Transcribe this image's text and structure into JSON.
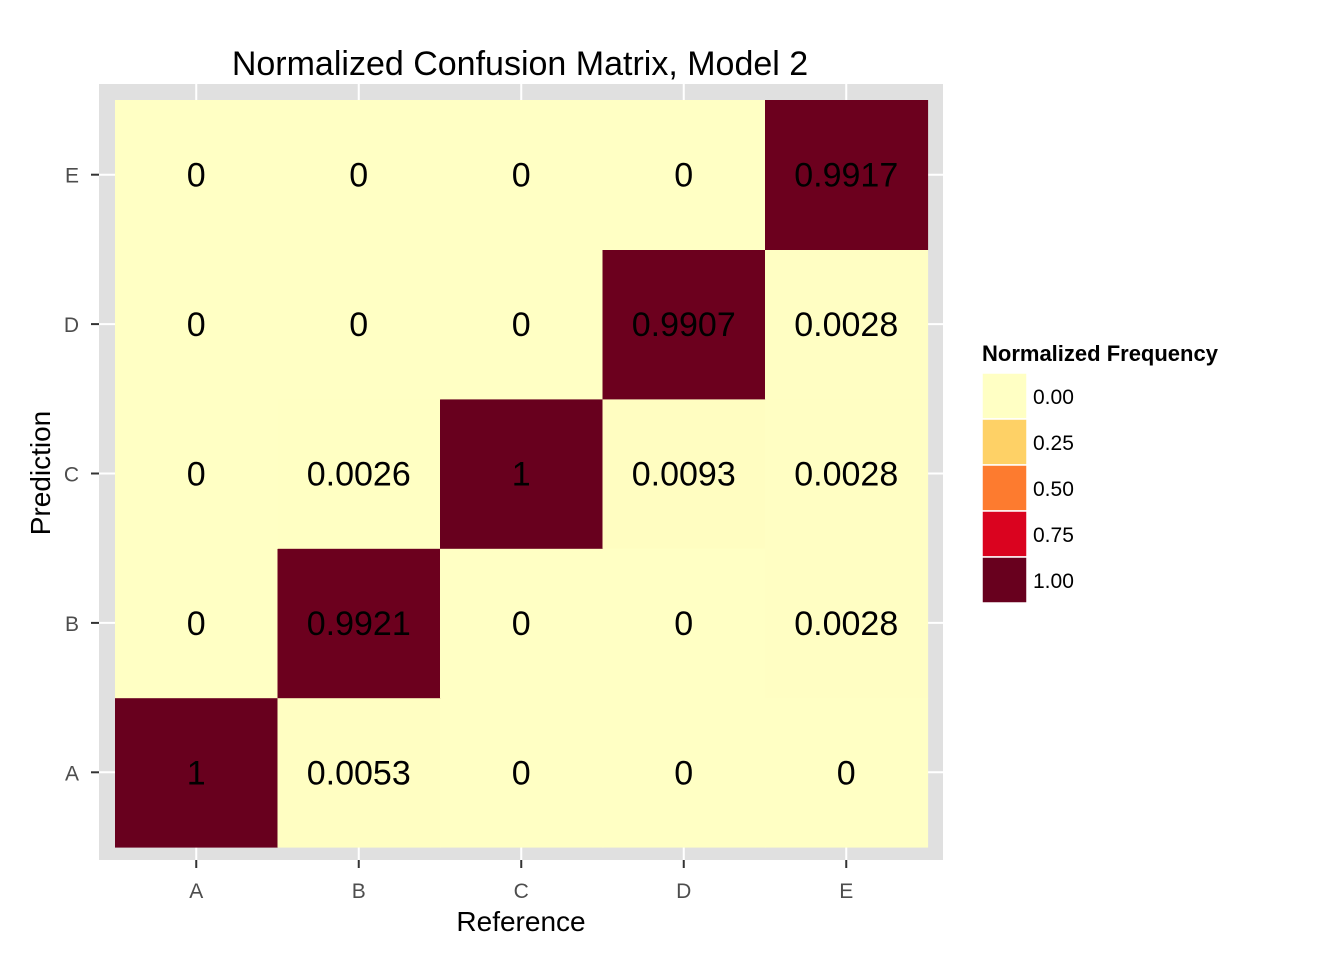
{
  "chart_data": {
    "type": "heatmap",
    "title": "Normalized Confusion Matrix, Model 2",
    "xlabel": "Reference",
    "ylabel": "Prediction",
    "x_categories": [
      "A",
      "B",
      "C",
      "D",
      "E"
    ],
    "y_categories": [
      "A",
      "B",
      "C",
      "D",
      "E"
    ],
    "cells": [
      {
        "x": "A",
        "y": "A",
        "value": 1,
        "label": "1"
      },
      {
        "x": "B",
        "y": "A",
        "value": 0.0053,
        "label": "0.0053"
      },
      {
        "x": "C",
        "y": "A",
        "value": 0,
        "label": "0"
      },
      {
        "x": "D",
        "y": "A",
        "value": 0,
        "label": "0"
      },
      {
        "x": "E",
        "y": "A",
        "value": 0,
        "label": "0"
      },
      {
        "x": "A",
        "y": "B",
        "value": 0,
        "label": "0"
      },
      {
        "x": "B",
        "y": "B",
        "value": 0.9921,
        "label": "0.9921"
      },
      {
        "x": "C",
        "y": "B",
        "value": 0,
        "label": "0"
      },
      {
        "x": "D",
        "y": "B",
        "value": 0,
        "label": "0"
      },
      {
        "x": "E",
        "y": "B",
        "value": 0.0028,
        "label": "0.0028"
      },
      {
        "x": "A",
        "y": "C",
        "value": 0,
        "label": "0"
      },
      {
        "x": "B",
        "y": "C",
        "value": 0.0026,
        "label": "0.0026"
      },
      {
        "x": "C",
        "y": "C",
        "value": 1,
        "label": "1"
      },
      {
        "x": "D",
        "y": "C",
        "value": 0.0093,
        "label": "0.0093"
      },
      {
        "x": "E",
        "y": "C",
        "value": 0.0028,
        "label": "0.0028"
      },
      {
        "x": "A",
        "y": "D",
        "value": 0,
        "label": "0"
      },
      {
        "x": "B",
        "y": "D",
        "value": 0,
        "label": "0"
      },
      {
        "x": "C",
        "y": "D",
        "value": 0,
        "label": "0"
      },
      {
        "x": "D",
        "y": "D",
        "value": 0.9907,
        "label": "0.9907"
      },
      {
        "x": "E",
        "y": "D",
        "value": 0.0028,
        "label": "0.0028"
      },
      {
        "x": "A",
        "y": "E",
        "value": 0,
        "label": "0"
      },
      {
        "x": "B",
        "y": "E",
        "value": 0,
        "label": "0"
      },
      {
        "x": "C",
        "y": "E",
        "value": 0,
        "label": "0"
      },
      {
        "x": "D",
        "y": "E",
        "value": 0,
        "label": "0"
      },
      {
        "x": "E",
        "y": "E",
        "value": 0.9917,
        "label": "0.9917"
      }
    ],
    "color_scale": {
      "colors": [
        "#ffffc4",
        "#fed166",
        "#fd7b2f",
        "#da031f",
        "#68001e"
      ],
      "breaks": [
        0.0,
        0.25,
        0.5,
        0.75,
        1.0
      ]
    },
    "legend": {
      "title": "Normalized Frequency",
      "position": "right",
      "items": [
        {
          "label": "0.00",
          "color": "#ffffc4"
        },
        {
          "label": "0.25",
          "color": "#fed166"
        },
        {
          "label": "0.50",
          "color": "#fd7b2f"
        },
        {
          "label": "0.75",
          "color": "#da031f"
        },
        {
          "label": "1.00",
          "color": "#68001e"
        }
      ]
    },
    "panel_background": "#e0e0e0",
    "grid": true
  }
}
